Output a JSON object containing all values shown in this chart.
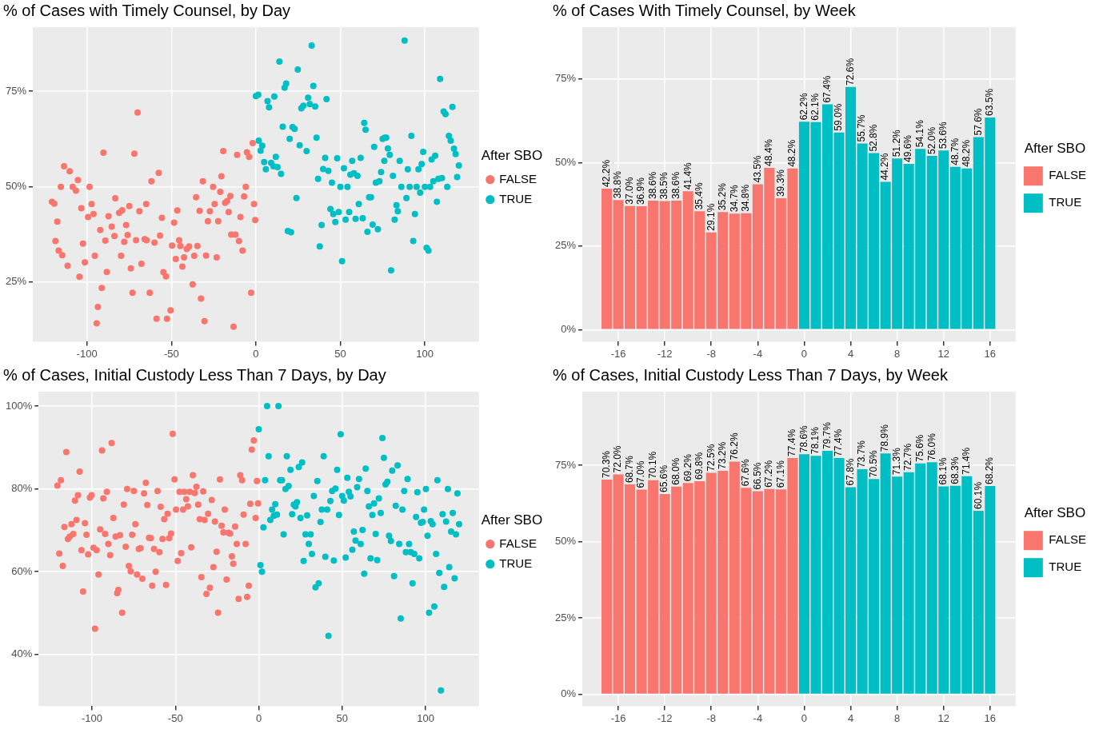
{
  "chart_data": [
    {
      "type": "scatter",
      "title": "% of Cases with Timely Counsel, by Day",
      "legend_title": "After SBO",
      "legend": "right",
      "grid": true,
      "marker": "circle",
      "xlim": [
        -132,
        132
      ],
      "xticks": [
        -100,
        -50,
        0,
        50,
        100
      ],
      "ylim": [
        9.3,
        91.8
      ],
      "yticks": [
        {
          "value": 25,
          "label": "25%"
        },
        {
          "value": 50,
          "label": "50%"
        },
        {
          "value": 75,
          "label": "75%"
        }
      ],
      "series": [
        {
          "name": "FALSE",
          "color": "#f8766d",
          "x": [
            -120.7,
            -119.3,
            -117.5,
            -118.6,
            -116.7,
            -114.6,
            -111.4,
            -113.5,
            -110.2,
            -115.4,
            -108.4,
            -106.5,
            -105.3,
            -103.3,
            -104.4,
            -101.2,
            -102.3,
            -98.4,
            -97.2,
            -99.3,
            -96.1,
            -92.1,
            -95.3,
            -90.2,
            -89.1,
            -88.2,
            -91.2,
            -93.5,
            -94.2,
            -87.2,
            -85.3,
            -83.2,
            -83.7,
            -80.9,
            -79.1,
            -77.9,
            -76.8,
            -75.9,
            -74.9,
            -79.8,
            -74.0,
            -73.0,
            -71.9,
            -70.0,
            -70.9,
            -68.9,
            -67.7,
            -64.9,
            -65.8,
            -64.7,
            -62.8,
            -61.8,
            -60.0,
            -57.5,
            -56.7,
            -55.6,
            -54.7,
            -53.2,
            -58.8,
            -52.6,
            -50.5,
            -49.6,
            -48.4,
            -47.4,
            -46.5,
            -45.4,
            -44.7,
            -43.5,
            -42.5,
            -40.9,
            -39.5,
            -37.4,
            -36.5,
            -35.4,
            -34.6,
            -33.3,
            -32.5,
            -31.4,
            -30.4,
            -29.5,
            -28.4,
            -27.2,
            -25.3,
            -24.4,
            -23.2,
            -22.3,
            -21.1,
            -20.4,
            -19.3,
            -18.2,
            -17.0,
            -16.1,
            -15.1,
            -14.6,
            -12.1,
            -13.2,
            -11.1,
            -10.0,
            -9.1,
            -7.9,
            -7.0,
            -6.0,
            -5.3,
            -4.0,
            -2.8,
            -1.9,
            -1.1,
            -0.4
          ],
          "values": [
            46.0,
            45.5,
            40.8,
            35.7,
            33.2,
            32.0,
            29.2,
            55.3,
            54.0,
            49.9,
            49.9,
            48.9,
            51.7,
            44.3,
            26.3,
            30.1,
            35.0,
            49.9,
            45.4,
            42.0,
            42.8,
            38.6,
            31.8,
            58.9,
            35.8,
            27.6,
            23.4,
            18.4,
            14.1,
            42.2,
            39.5,
            46.9,
            37.0,
            43.1,
            43.8,
            35.5,
            39.9,
            37.3,
            44.9,
            31.8,
            28.5,
            22.1,
            58.6,
            69.4,
            35.9,
            43.5,
            29.7,
            45.4,
            36.2,
            35.9,
            22.1,
            51.4,
            35.3,
            53.6,
            37.1,
            41.8,
            27.5,
            26.4,
            15.3,
            15.3,
            17.5,
            34.5,
            40.5,
            31.0,
            43.7,
            35.9,
            34.4,
            29.0,
            31.4,
            33.6,
            34.3,
            24.3,
            31.8,
            47.2,
            34.4,
            43.6,
            20.6,
            51.4,
            14.7,
            31.9,
            40.9,
            43.5,
            49.9,
            45.4,
            31.4,
            40.9,
            48.6,
            52.7,
            59.3,
            45.7,
            46.2,
            43.3,
            47.5,
            37.4,
            37.4,
            13.2,
            58.3,
            35.7,
            42.0,
            33.2,
            47.4,
            49.9,
            59.0,
            57.8,
            22.1,
            61.4,
            45.4,
            41.2
          ]
        },
        {
          "name": "TRUE",
          "color": "#00bfc4",
          "x": [
            0.0,
            1.4,
            1.7,
            3.8,
            2.8,
            4.9,
            5.9,
            6.9,
            7.8,
            9.0,
            10.4,
            10.9,
            11.8,
            12.8,
            13.9,
            14.9,
            15.9,
            17.0,
            17.9,
            18.9,
            20.8,
            20.0,
            21.7,
            22.9,
            24.0,
            24.8,
            25.9,
            26.9,
            28.1,
            30.0,
            30.9,
            31.9,
            33.0,
            34.0,
            35.1,
            35.9,
            36.8,
            37.8,
            38.9,
            39.8,
            41.0,
            41.8,
            42.9,
            45.0,
            44.1,
            45.8,
            47.0,
            48.1,
            49.0,
            50.0,
            51.0,
            52.1,
            53.1,
            54.2,
            55.2,
            55.9,
            57.0,
            58.0,
            59.0,
            60.1,
            60.9,
            62.0,
            63.2,
            64.1,
            64.9,
            66.0,
            67.0,
            68.1,
            69.1,
            70.0,
            71.0,
            72.2,
            73.1,
            74.1,
            75.0,
            76.2,
            77.1,
            76.0,
            78.1,
            79.2,
            80.0,
            81.1,
            82.1,
            83.2,
            84.0,
            85.1,
            86.1,
            88.0,
            89.1,
            89.9,
            91.0,
            92.0,
            93.1,
            94.1,
            95.1,
            96.2,
            97.2,
            98.1,
            99.0,
            100.0,
            101.0,
            102.1,
            103.1,
            104.0,
            105.0,
            106.1,
            107.1,
            108.0,
            109.0,
            110.1,
            111.1,
            112.2,
            113.2,
            114.2,
            115.3,
            116.3,
            117.2,
            118.2,
            119.1,
            120.1
          ],
          "values": [
            73.7,
            74.1,
            62.0,
            60.7,
            59.4,
            56.4,
            54.5,
            72.4,
            70.8,
            56.2,
            55.3,
            73.6,
            57.8,
            55.1,
            82.8,
            53.3,
            65.7,
            75.9,
            77.0,
            38.3,
            38.0,
            62.5,
            65.6,
            65.1,
            47.0,
            80.7,
            60.8,
            70.5,
            71.2,
            59.3,
            73.3,
            71.6,
            87.0,
            76.4,
            71.0,
            62.8,
            52.0,
            34.3,
            39.9,
            54.6,
            57.5,
            72.9,
            54.1,
            51.0,
            44.1,
            42.8,
            40.7,
            57.4,
            43.3,
            49.9,
            30.4,
            54.8,
            41.3,
            49.9,
            43.3,
            53.1,
            56.7,
            53.5,
            41.5,
            52.8,
            45.4,
            57.5,
            41.7,
            66.7,
            64.9,
            38.1,
            47.2,
            47.2,
            40.0,
            60.4,
            51.0,
            38.8,
            51.4,
            53.8,
            62.5,
            62.8,
            62.8,
            56.7,
            60.0,
            58.3,
            28.0,
            52.8,
            41.3,
            45.1,
            43.5,
            56.7,
            49.9,
            88.3,
            47.0,
            54.5,
            49.9,
            63.3,
            35.7,
            42.8,
            49.9,
            54.5,
            48.4,
            55.9,
            59.1,
            49.9,
            33.9,
            33.2,
            49.9,
            57.1,
            51.4,
            58.1,
            46.0,
            52.0,
            78.2,
            52.2,
            69.7,
            69.0,
            49.9,
            63.3,
            62.0,
            70.9,
            59.9,
            58.5,
            52.5,
            55.5
          ]
        }
      ]
    },
    {
      "type": "bar",
      "title": "% of Cases With Timely Counsel, by Week",
      "legend_title": "After SBO",
      "legend": "right",
      "grid": true,
      "xlim": [
        -19.1,
        18.2
      ],
      "xticks": [
        -16,
        -12,
        -8,
        -4,
        0,
        4,
        8,
        12,
        16
      ],
      "ylim": [
        -3.6,
        90.5
      ],
      "yticks": [
        {
          "value": 0,
          "label": "0%"
        },
        {
          "value": 25,
          "label": "25%"
        },
        {
          "value": 50,
          "label": "50%"
        },
        {
          "value": 75,
          "label": "75%"
        }
      ],
      "series": [
        {
          "name": "FALSE",
          "color": "#f8766d",
          "x": [
            -17,
            -16,
            -15,
            -14,
            -13,
            -12,
            -11,
            -10,
            -9,
            -8,
            -7,
            -6,
            -5,
            -4,
            -3,
            -2,
            -1
          ],
          "values": [
            42.2,
            38.8,
            37.0,
            36.9,
            38.6,
            38.5,
            38.6,
            41.4,
            35.4,
            29.1,
            35.2,
            34.7,
            34.8,
            43.5,
            48.4,
            39.3,
            48.2
          ],
          "value_labels": [
            "42.2%",
            "38.8%",
            "37.0%",
            "36.9%",
            "38.6%",
            "38.5%",
            "38.6%",
            "41.4%",
            "35.4%",
            "29.1%",
            "35.2%",
            "34.7%",
            "34.8%",
            "43.5%",
            "48.4%",
            "39.3%",
            "48.2%"
          ]
        },
        {
          "name": "TRUE",
          "color": "#00bfc4",
          "x": [
            0,
            1,
            2,
            3,
            4,
            5,
            6,
            7,
            8,
            9,
            10,
            11,
            12,
            13,
            14,
            15,
            16
          ],
          "values": [
            62.2,
            62.1,
            67.4,
            59.0,
            72.6,
            55.7,
            52.8,
            44.2,
            51.2,
            49.6,
            54.1,
            52.0,
            53.6,
            48.7,
            48.2,
            57.6,
            63.5
          ],
          "value_labels": [
            "62.2%",
            "62.1%",
            "67.4%",
            "59.0%",
            "72.6%",
            "55.7%",
            "52.8%",
            "44.2%",
            "51.2%",
            "49.6%",
            "54.1%",
            "52.0%",
            "53.6%",
            "48.7%",
            "48.2%",
            "57.6%",
            "63.5%"
          ]
        }
      ]
    },
    {
      "type": "scatter",
      "title": "% of Cases, Initial Custody Less Than 7 Days, by Day",
      "legend_title": "After SBO",
      "legend": "right",
      "grid": true,
      "marker": "circle",
      "xlim": [
        -132,
        132
      ],
      "xticks": [
        -100,
        -50,
        0,
        50,
        100
      ],
      "ylim": [
        27.5,
        103.5
      ],
      "yticks": [
        {
          "value": 40,
          "label": "40%"
        },
        {
          "value": 60,
          "label": "60%"
        },
        {
          "value": 80,
          "label": "80%"
        },
        {
          "value": 100,
          "label": "100%"
        }
      ],
      "series": [
        {
          "name": "FALSE",
          "color": "#f8766d",
          "x": [
            -120.7,
            -118.6,
            -119.6,
            -117.5,
            -116.5,
            -115.4,
            -114.4,
            -113.3,
            -112.3,
            -111.2,
            -110.2,
            -109.3,
            -108.4,
            -107.4,
            -106.3,
            -105.3,
            -104.2,
            -103.3,
            -102.3,
            -101.2,
            -100.2,
            -99.1,
            -98.2,
            -97.2,
            -96.1,
            -95.1,
            -94.0,
            -93.2,
            -92.1,
            -91.1,
            -90.2,
            -89.1,
            -88.2,
            -87.2,
            -85.8,
            -84.9,
            -84.2,
            -83.2,
            -81.9,
            -80.9,
            -79.8,
            -78.9,
            -77.9,
            -76.8,
            -75.9,
            -74.9,
            -74.0,
            -73.0,
            -71.9,
            -70.9,
            -69.8,
            -68.8,
            -67.7,
            -66.8,
            -65.8,
            -64.7,
            -63.9,
            -62.8,
            -61.8,
            -60.7,
            -59.6,
            -58.8,
            -57.7,
            -56.7,
            -55.6,
            -54.7,
            -53.7,
            -52.6,
            -51.6,
            -50.5,
            -49.6,
            -48.6,
            -47.5,
            -46.5,
            -45.4,
            -44.6,
            -43.5,
            -42.5,
            -41.4,
            -40.5,
            -39.5,
            -38.4,
            -37.4,
            -36.3,
            -35.4,
            -34.4,
            -33.3,
            -32.5,
            -31.4,
            -30.4,
            -29.3,
            -28.2,
            -27.2,
            -26.3,
            -25.3,
            -24.4,
            -23.3,
            -22.3,
            -21.2,
            -20.4,
            -19.3,
            -18.2,
            -17.2,
            -16.1,
            -15.3,
            -14.2,
            -13.2,
            -12.1,
            -11.1,
            -10.0,
            -9.1,
            -7.9,
            -7.0,
            -6.0,
            -5.1,
            -4.2,
            -3.0,
            -1.9,
            -1.1,
            -0.4
          ],
          "values": [
            80.8,
            82.1,
            64.4,
            61.4,
            70.8,
            88.9,
            67.9,
            68.5,
            71.5,
            69.1,
            77.2,
            72.5,
            78.5,
            84.2,
            65.2,
            55.2,
            71.7,
            68.9,
            64.2,
            77.9,
            78.5,
            65.8,
            46.2,
            65.2,
            59.3,
            70.2,
            89.3,
            77.7,
            69.1,
            79.3,
            66.7,
            64.0,
            91.1,
            73.0,
            68.5,
            54.8,
            55.6,
            68.8,
            50.1,
            76.2,
            66.0,
            80.0,
            61.4,
            60.1,
            68.9,
            79.5,
            71.5,
            59.3,
            65.5,
            65.7,
            58.3,
            78.9,
            81.5,
            76.1,
            68.2,
            68.1,
            56.6,
            65.5,
            60.0,
            79.5,
            64.7,
            75.7,
            67.9,
            72.7,
            56.8,
            74.0,
            68.1,
            69.2,
            93.3,
            82.3,
            75.0,
            62.6,
            79.3,
            64.5,
            75.0,
            79.3,
            77.5,
            75.8,
            79.3,
            65.9,
            83.3,
            79.0,
            80.5,
            76.2,
            72.7,
            58.7,
            79.4,
            72.5,
            54.6,
            74.0,
            56.1,
            77.3,
            61.1,
            72.1,
            64.8,
            50.1,
            82.3,
            71.1,
            69.5,
            75.0,
            58.1,
            69.4,
            69.2,
            63.7,
            61.9,
            70.9,
            66.7,
            53.4,
            83.3,
            82.1,
            73.8,
            66.7,
            53.9,
            56.6,
            76.4,
            89.5,
            91.7,
            73.0,
            81.9,
            76.5
          ]
        },
        {
          "name": "TRUE",
          "color": "#00bfc4",
          "x": [
            0.0,
            1.0,
            1.9,
            2.8,
            3.8,
            5.0,
            5.9,
            6.9,
            8.0,
            9.0,
            9.9,
            10.9,
            11.8,
            12.8,
            13.9,
            14.9,
            16.0,
            16.8,
            17.9,
            19.0,
            20.0,
            21.0,
            22.0,
            22.9,
            24.0,
            25.0,
            26.0,
            26.9,
            28.0,
            29.0,
            30.0,
            31.1,
            31.9,
            33.0,
            34.0,
            35.1,
            35.9,
            37.0,
            37.8,
            38.9,
            39.9,
            41.0,
            41.8,
            42.9,
            44.0,
            45.0,
            46.0,
            47.0,
            48.1,
            49.1,
            50.0,
            51.0,
            52.1,
            53.1,
            54.0,
            55.0,
            56.1,
            57.0,
            58.0,
            59.0,
            60.1,
            61.1,
            62.2,
            63.2,
            64.1,
            65.1,
            66.0,
            67.0,
            68.1,
            69.1,
            70.1,
            71.0,
            72.0,
            73.1,
            74.1,
            75.0,
            76.0,
            77.1,
            78.1,
            79.2,
            80.0,
            81.1,
            82.1,
            83.2,
            84.2,
            85.1,
            86.1,
            87.2,
            88.2,
            89.2,
            90.1,
            91.1,
            92.2,
            93.2,
            94.3,
            95.1,
            96.2,
            97.2,
            98.3,
            99.1,
            100.2,
            101.2,
            102.1,
            103.1,
            104.2,
            105.2,
            106.3,
            107.1,
            108.2,
            109.2,
            110.2,
            111.1,
            112.3,
            113.4,
            114.2,
            115.3,
            116.3,
            117.4,
            118.2,
            119.1,
            120.1
          ],
          "values": [
            94.4,
            61.6,
            60.0,
            70.7,
            82.1,
            100.0,
            87.9,
            72.5,
            75.0,
            73.5,
            76.3,
            73.8,
            100.0,
            82.1,
            82.1,
            69.0,
            80.0,
            87.9,
            80.7,
            84.6,
            73.9,
            76.2,
            75.8,
            76.8,
            85.3,
            73.0,
            86.4,
            62.6,
            69.0,
            73.6,
            66.7,
            69.0,
            64.3,
            78.3,
            56.2,
            81.9,
            57.2,
            72.0,
            75.0,
            87.9,
            63.6,
            75.0,
            44.5,
            77.1,
            79.5,
            62.7,
            80.1,
            84.6,
            73.7,
            93.2,
            78.3,
            77.2,
            63.4,
            82.7,
            79.3,
            78.2,
            65.3,
            69.7,
            67.5,
            80.4,
            82.4,
            66.7,
            70.1,
            59.5,
            84.9,
            79.5,
            75.8,
            63.2,
            73.7,
            76.5,
            69.1,
            62.8,
            77.7,
            74.2,
            92.3,
            87.5,
            81.1,
            81.7,
            68.7,
            67.4,
            84.4,
            58.9,
            75.9,
            85.7,
            66.7,
            48.7,
            75.0,
            79.5,
            64.7,
            82.4,
            66.7,
            64.7,
            57.2,
            64.3,
            73.2,
            79.2,
            63.2,
            71.8,
            72.0,
            75.0,
            80.0,
            68.7,
            50.1,
            72.2,
            71.5,
            51.6,
            64.3,
            82.1,
            59.7,
            31.3,
            73.9,
            56.3,
            72.1,
            80.0,
            61.1,
            69.7,
            74.2,
            58.4,
            69.0,
            78.9,
            71.5
          ]
        }
      ]
    },
    {
      "type": "bar",
      "title": "% of Cases, Initial Custody Less Than 7 Days, by Week",
      "legend_title": "After SBO",
      "legend": "right",
      "grid": true,
      "xlim": [
        -19.1,
        18.2
      ],
      "xticks": [
        -16,
        -12,
        -8,
        -4,
        0,
        4,
        8,
        12,
        16
      ],
      "ylim": [
        -3.9,
        99.1
      ],
      "yticks": [
        {
          "value": 0,
          "label": "0%"
        },
        {
          "value": 25,
          "label": "25%"
        },
        {
          "value": 50,
          "label": "50%"
        },
        {
          "value": 75,
          "label": "75%"
        }
      ],
      "series": [
        {
          "name": "FALSE",
          "color": "#f8766d",
          "x": [
            -17,
            -16,
            -15,
            -14,
            -13,
            -12,
            -11,
            -10,
            -9,
            -8,
            -7,
            -6,
            -5,
            -4,
            -3,
            -2,
            -1
          ],
          "values": [
            70.3,
            72.0,
            68.7,
            67.0,
            70.1,
            65.6,
            68.0,
            69.2,
            69.8,
            72.5,
            73.2,
            76.2,
            67.6,
            66.5,
            67.2,
            67.1,
            77.4
          ],
          "value_labels": [
            "70.3%",
            "72.0%",
            "68.7%",
            "67.0%",
            "70.1%",
            "65.6%",
            "68.0%",
            "69.2%",
            "69.8%",
            "72.5%",
            "73.2%",
            "76.2%",
            "67.6%",
            "66.5%",
            "67.2%",
            "67.1%",
            "77.4%"
          ]
        },
        {
          "name": "TRUE",
          "color": "#00bfc4",
          "x": [
            0,
            1,
            2,
            3,
            4,
            5,
            6,
            7,
            8,
            9,
            10,
            11,
            12,
            13,
            14,
            15,
            16
          ],
          "values": [
            78.6,
            78.1,
            79.7,
            77.4,
            67.8,
            73.7,
            70.5,
            78.9,
            71.3,
            72.7,
            75.6,
            76.0,
            68.1,
            68.3,
            71.4,
            60.1,
            68.2
          ],
          "value_labels": [
            "78.6%",
            "78.1%",
            "79.7%",
            "77.4%",
            "67.8%",
            "73.7%",
            "70.5%",
            "78.9%",
            "71.3%",
            "72.7%",
            "75.6%",
            "76.0%",
            "68.1%",
            "68.3%",
            "71.4%",
            "60.1%",
            "68.2%"
          ]
        }
      ]
    }
  ]
}
